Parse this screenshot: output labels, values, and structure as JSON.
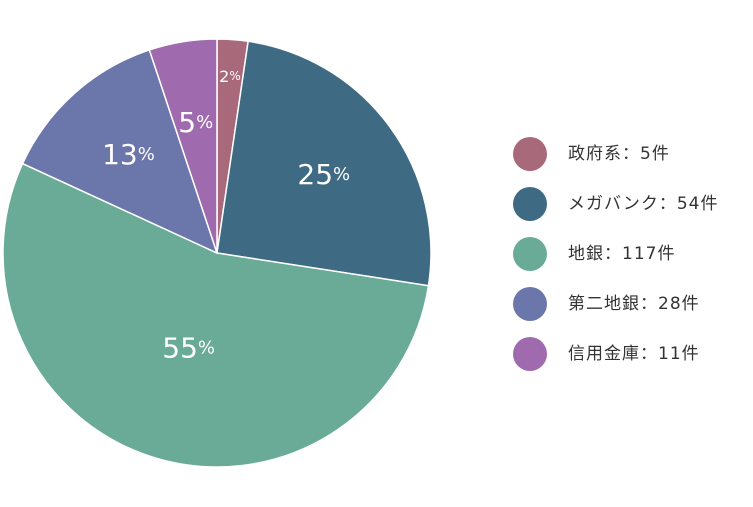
{
  "chart_data": {
    "type": "pie",
    "title": "",
    "start_angle_deg": 0,
    "direction": "clockwise",
    "legend_position": "right",
    "slices": [
      {
        "label": "政府系：5件",
        "value": 5,
        "percent_text": "2",
        "color": "#A8697A"
      },
      {
        "label": "メガバンク：54件",
        "value": 54,
        "percent_text": "25",
        "color": "#3E6B83"
      },
      {
        "label": "地銀：117件",
        "value": 117,
        "percent_text": "55",
        "color": "#6AAB97"
      },
      {
        "label": "第二地銀：28件",
        "value": 28,
        "percent_text": "13",
        "color": "#6B76AA"
      },
      {
        "label": "信用金庫：11件",
        "value": 11,
        "percent_text": "5",
        "color": "#A06BAE"
      }
    ],
    "percent_suffix": "%"
  }
}
